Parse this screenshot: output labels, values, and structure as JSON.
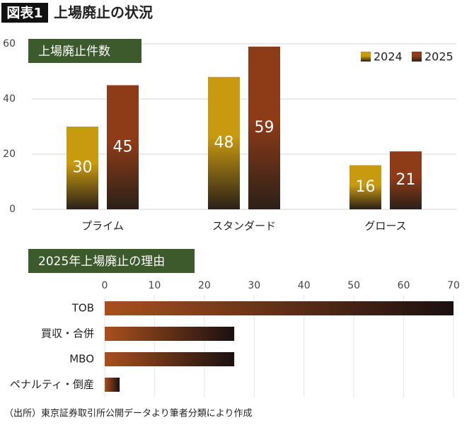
{
  "header": {
    "label": "図表1",
    "title": "上場廃止の状況"
  },
  "chart_data": [
    {
      "type": "bar",
      "title": "上場廃止件数",
      "categories": [
        "プライム",
        "スタンダード",
        "グロース"
      ],
      "series": [
        {
          "name": "2024",
          "color": "#c89a10",
          "values": [
            30,
            48,
            16
          ]
        },
        {
          "name": "2025",
          "color": "#8e3b18",
          "values": [
            45,
            59,
            21
          ]
        }
      ],
      "ylim": [
        0,
        60
      ],
      "yticks": [
        0,
        20,
        40,
        60
      ],
      "grid": true,
      "legend": "top-right"
    },
    {
      "type": "bar",
      "orientation": "horizontal",
      "title": "2025年上場廃止の理由",
      "categories": [
        "TOB",
        "買収・合併",
        "MBO",
        "ペナルティ・倒産"
      ],
      "values": [
        70,
        26,
        26,
        3
      ],
      "color": "#a8501e",
      "xlim": [
        0,
        70
      ],
      "xticks": [
        0,
        10,
        20,
        30,
        40,
        50,
        60,
        70
      ],
      "grid": true
    }
  ],
  "source": "（出所）東京証券取引所公開データより筆者分類により作成"
}
